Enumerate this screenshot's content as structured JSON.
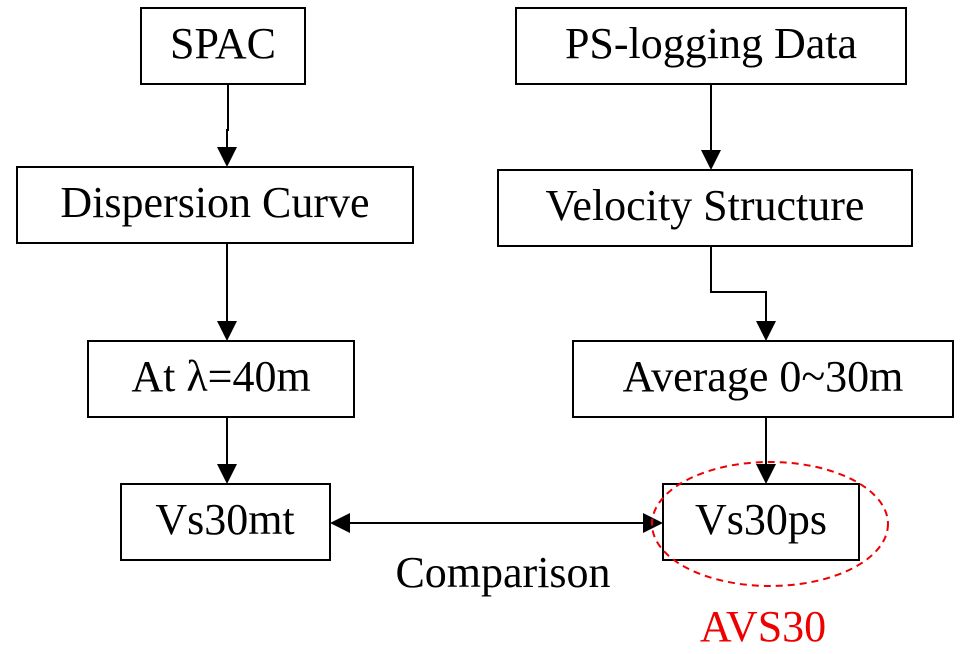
{
  "nodes": [
    {
      "label": "SPAC"
    },
    {
      "label": "Dispersion Curve"
    },
    {
      "label": "At λ=40m"
    },
    {
      "label": "Vs30mt"
    },
    {
      "label": "PS-logging Data"
    },
    {
      "label": "Velocity Structure"
    },
    {
      "label": "Average 0~30m"
    },
    {
      "label": "Vs30ps"
    }
  ],
  "edge_label": "Comparison",
  "annotation": "AVS30"
}
